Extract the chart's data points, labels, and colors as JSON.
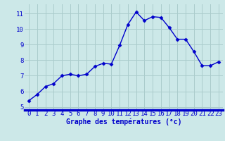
{
  "x": [
    0,
    1,
    2,
    3,
    4,
    5,
    6,
    7,
    8,
    9,
    10,
    11,
    12,
    13,
    14,
    15,
    16,
    17,
    18,
    19,
    20,
    21,
    22,
    23
  ],
  "y": [
    5.4,
    5.8,
    6.3,
    6.5,
    7.0,
    7.1,
    7.0,
    7.1,
    7.6,
    7.8,
    7.75,
    8.95,
    10.3,
    11.1,
    10.55,
    10.8,
    10.75,
    10.1,
    9.35,
    9.35,
    8.55,
    7.65,
    7.65,
    7.9
  ],
  "line_color": "#0000cc",
  "marker": "D",
  "markersize": 2.5,
  "linewidth": 1.0,
  "bg_color": "#cce8e8",
  "grid_color": "#aacccc",
  "xlabel": "Graphe des températures (°c)",
  "xlabel_color": "#0000cc",
  "xlabel_fontsize": 7,
  "tick_color": "#0000cc",
  "tick_fontsize": 6.5,
  "xlim": [
    -0.5,
    23.5
  ],
  "ylim": [
    4.8,
    11.6
  ],
  "yticks": [
    5,
    6,
    7,
    8,
    9,
    10,
    11
  ],
  "xticks": [
    0,
    1,
    2,
    3,
    4,
    5,
    6,
    7,
    8,
    9,
    10,
    11,
    12,
    13,
    14,
    15,
    16,
    17,
    18,
    19,
    20,
    21,
    22,
    23
  ],
  "spine_color": "#0000cc",
  "spine_linewidth": 2.5
}
